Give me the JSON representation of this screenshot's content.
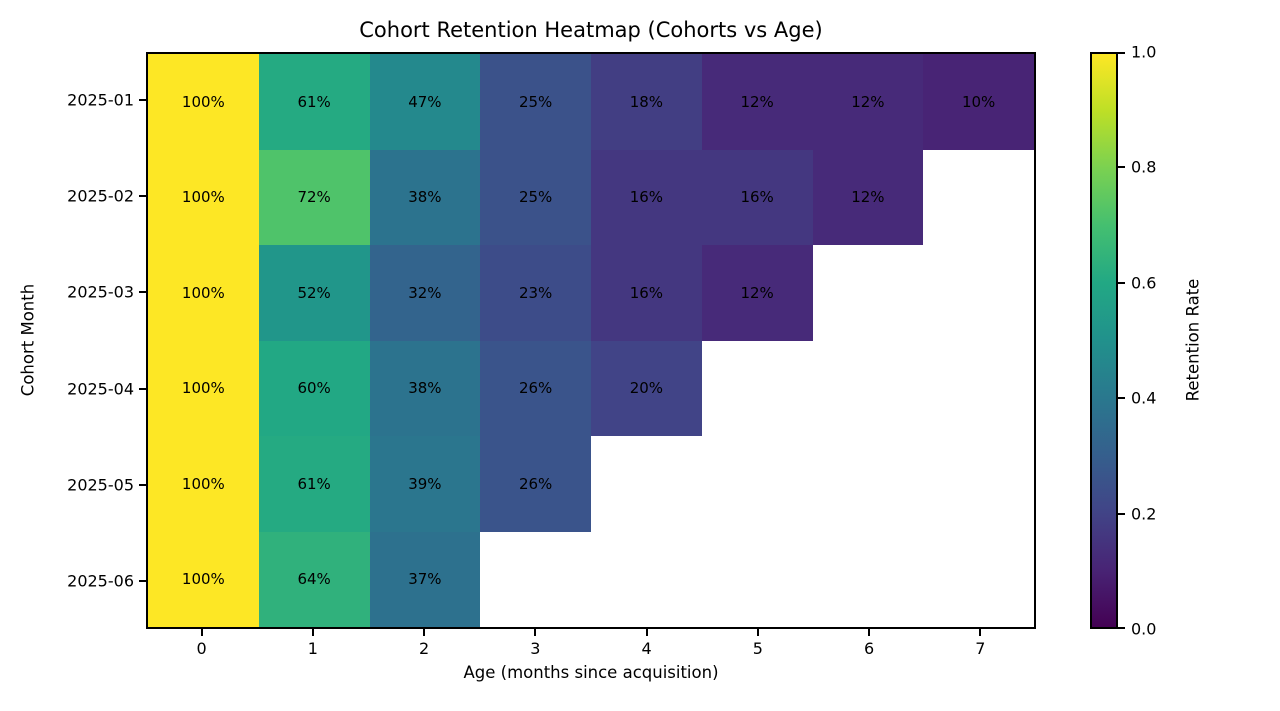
{
  "figure": {
    "background": "#ffffff",
    "text_color": "#000000",
    "frame_color": "#000000"
  },
  "chart_data": {
    "type": "heatmap",
    "title": "Cohort Retention Heatmap (Cohorts vs Age)",
    "xlabel": "Age (months since acquisition)",
    "ylabel": "Cohort Month",
    "x_tick_labels": [
      "0",
      "1",
      "2",
      "3",
      "4",
      "5",
      "6",
      "7"
    ],
    "y_tick_labels": [
      "2025-01",
      "2025-02",
      "2025-03",
      "2025-04",
      "2025-05",
      "2025-06"
    ],
    "vmin": 0.0,
    "vmax": 1.0,
    "colormap": "viridis",
    "colormap_stops": [
      "#440154",
      "#482475",
      "#414487",
      "#355f8d",
      "#2a788e",
      "#21918c",
      "#22a884",
      "#44bf70",
      "#7ad151",
      "#bddf26",
      "#fde725"
    ],
    "grid": false,
    "series": [
      {
        "cohort": "2025-01",
        "values": [
          1.0,
          0.61,
          0.47,
          0.25,
          0.18,
          0.12,
          0.12,
          0.1
        ],
        "labels": [
          "100%",
          "61%",
          "47%",
          "25%",
          "18%",
          "12%",
          "12%",
          "10%"
        ]
      },
      {
        "cohort": "2025-02",
        "values": [
          1.0,
          0.72,
          0.38,
          0.25,
          0.16,
          0.16,
          0.12,
          null
        ],
        "labels": [
          "100%",
          "72%",
          "38%",
          "25%",
          "16%",
          "16%",
          "12%",
          null
        ]
      },
      {
        "cohort": "2025-03",
        "values": [
          1.0,
          0.52,
          0.32,
          0.23,
          0.16,
          0.12,
          null,
          null
        ],
        "labels": [
          "100%",
          "52%",
          "32%",
          "23%",
          "16%",
          "12%",
          null,
          null
        ]
      },
      {
        "cohort": "2025-04",
        "values": [
          1.0,
          0.6,
          0.38,
          0.26,
          0.2,
          null,
          null,
          null
        ],
        "labels": [
          "100%",
          "60%",
          "38%",
          "26%",
          "20%",
          null,
          null,
          null
        ]
      },
      {
        "cohort": "2025-05",
        "values": [
          1.0,
          0.61,
          0.39,
          0.26,
          null,
          null,
          null,
          null
        ],
        "labels": [
          "100%",
          "61%",
          "39%",
          "26%",
          null,
          null,
          null,
          null
        ]
      },
      {
        "cohort": "2025-06",
        "values": [
          1.0,
          0.64,
          0.37,
          null,
          null,
          null,
          null,
          null
        ],
        "labels": [
          "100%",
          "64%",
          "37%",
          null,
          null,
          null,
          null,
          null
        ]
      }
    ],
    "colorbar": {
      "label": "Retention Rate",
      "tick_values": [
        0.0,
        0.2,
        0.4,
        0.6,
        0.8,
        1.0
      ],
      "tick_labels": [
        "0.0",
        "0.2",
        "0.4",
        "0.6",
        "0.8",
        "1.0"
      ],
      "position": "right"
    }
  }
}
